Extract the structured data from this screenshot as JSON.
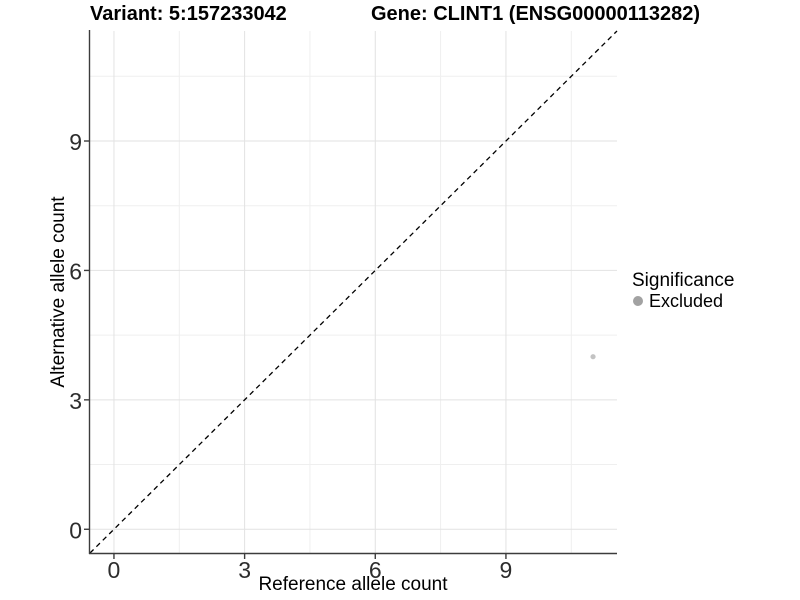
{
  "header": {
    "title_left": "Variant: 5:157233042",
    "title_right": "Gene: CLINT1 (ENSG00000113282)"
  },
  "colors": {
    "axis_line": "#3c3c3c",
    "tick_label": "#2d2d2d",
    "grid_major": "#e2e2e2",
    "grid_minor": "#efefef",
    "abline": "#000000",
    "point_excluded": "#c3c3c3",
    "legend_key": "#a2a2a2",
    "background": "#ffffff"
  },
  "chart_data": {
    "type": "scatter",
    "title_left": "Variant: 5:157233042",
    "title_right": "Gene: CLINT1 (ENSG00000113282)",
    "xlabel": "Reference allele count",
    "ylabel": "Alternative allele count",
    "xlim": [
      -0.55,
      11.55
    ],
    "ylim": [
      -0.55,
      11.55
    ],
    "x_ticks": [
      0,
      3,
      6,
      9
    ],
    "y_ticks": [
      0,
      3,
      6,
      9
    ],
    "x_minor": [
      1.5,
      4.5,
      7.5,
      10.5
    ],
    "y_minor": [
      1.5,
      4.5,
      7.5,
      10.5
    ],
    "grid": "major+minor",
    "abline": {
      "slope": 1,
      "intercept": 0,
      "style": "dashed",
      "color": "#000000"
    },
    "series": [
      {
        "name": "Excluded",
        "color": "#c3c3c3",
        "points": [
          [
            11,
            4
          ]
        ]
      }
    ],
    "legend": {
      "position": "right",
      "title": "Significance",
      "items": [
        {
          "label": "Excluded",
          "color": "#a2a2a2"
        }
      ]
    }
  }
}
